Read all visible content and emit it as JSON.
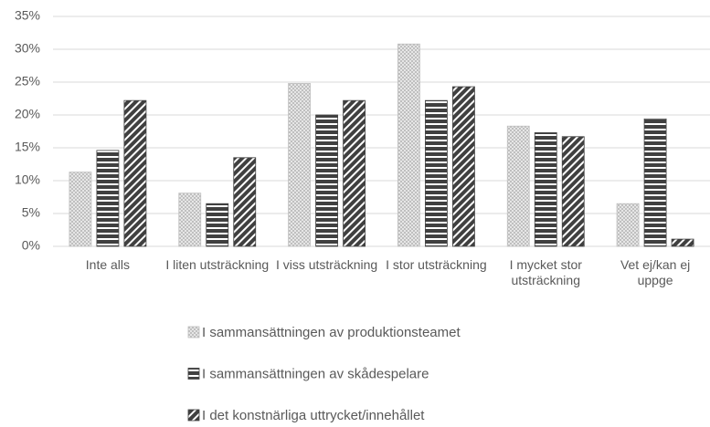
{
  "chart_data": {
    "type": "bar",
    "categories": [
      "Inte alls",
      "I liten utsträckning",
      "I viss utsträckning",
      "I stor utsträckning",
      "I mycket stor utsträckning",
      "Vet ej/kan ej uppge"
    ],
    "series": [
      {
        "name": "I sammansättningen av produktionsteamet",
        "color": "#d9d9d9",
        "pattern": "dots",
        "values": [
          11.3,
          8.1,
          24.8,
          30.8,
          18.3,
          6.5
        ]
      },
      {
        "name": "I sammansättningen av skådespelare",
        "color": "#404040",
        "pattern": "horizontal",
        "values": [
          14.6,
          6.5,
          20.0,
          22.2,
          17.3,
          19.4
        ]
      },
      {
        "name": "I det konstnärliga uttrycket/innehållet",
        "color": "#404040",
        "pattern": "diagonal",
        "values": [
          22.2,
          13.5,
          22.2,
          24.3,
          16.7,
          1.1
        ]
      }
    ],
    "ylim": [
      0,
      35
    ],
    "yticks": [
      {
        "value": 0,
        "label": "0%"
      },
      {
        "value": 5,
        "label": "5%"
      },
      {
        "value": 10,
        "label": "10%"
      },
      {
        "value": 15,
        "label": "15%"
      },
      {
        "value": 20,
        "label": "20%"
      },
      {
        "value": 25,
        "label": "25%"
      },
      {
        "value": 30,
        "label": "30%"
      },
      {
        "value": 35,
        "label": "35%"
      }
    ],
    "grid": true,
    "legend": "bottom"
  }
}
